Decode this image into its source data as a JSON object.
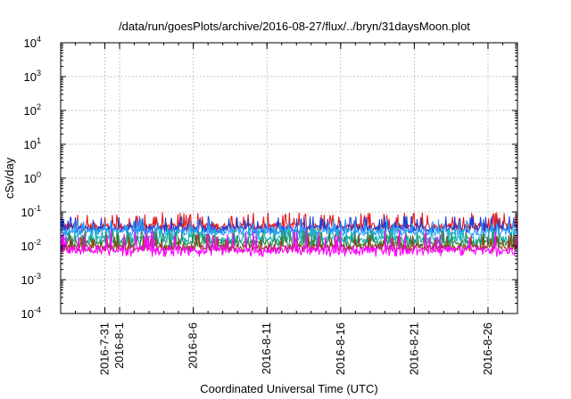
{
  "chart_data": {
    "type": "line",
    "title": "/data/run/goesPlots/archive/2016-08-27/flux/../bryn/31daysMoon.plot",
    "xlabel": "Coordinated Universal Time (UTC)",
    "ylabel": "cSv/day",
    "yscale": "log",
    "ylim": [
      0.0001,
      10000
    ],
    "yticks": [
      {
        "base": "10",
        "exp": "-4",
        "value": 0.0001
      },
      {
        "base": "10",
        "exp": "-3",
        "value": 0.001
      },
      {
        "base": "10",
        "exp": "-2",
        "value": 0.01
      },
      {
        "base": "10",
        "exp": "-1",
        "value": 0.1
      },
      {
        "base": "10",
        "exp": "0",
        "value": 1
      },
      {
        "base": "10",
        "exp": "1",
        "value": 10
      },
      {
        "base": "10",
        "exp": "2",
        "value": 100
      },
      {
        "base": "10",
        "exp": "3",
        "value": 1000
      },
      {
        "base": "10",
        "exp": "4",
        "value": 10000
      }
    ],
    "xlim": [
      "2016-07-28",
      "2016-08-28"
    ],
    "xticks": [
      "2016-7-31",
      "2016-8-1",
      "2016-8-6",
      "2016-8-11",
      "2016-8-16",
      "2016-8-21",
      "2016-8-26"
    ],
    "grid": true,
    "series": [
      {
        "color": "#e41a1c",
        "typical": 0.038,
        "spike_max": 0.095
      },
      {
        "color": "#1f3fd6",
        "typical": 0.032,
        "spike_max": 0.075
      },
      {
        "color": "#2aa0ff",
        "typical": 0.026,
        "spike_max": 0.06
      },
      {
        "color": "#17b5b5",
        "typical": 0.016,
        "spike_max": 0.035
      },
      {
        "color": "#2e8b57",
        "typical": 0.012,
        "spike_max": 0.028
      },
      {
        "color": "#8b4513",
        "typical": 0.009,
        "spike_max": 0.022
      },
      {
        "color": "#ff00ff",
        "typical": 0.008,
        "spike_max": 0.03
      }
    ]
  }
}
